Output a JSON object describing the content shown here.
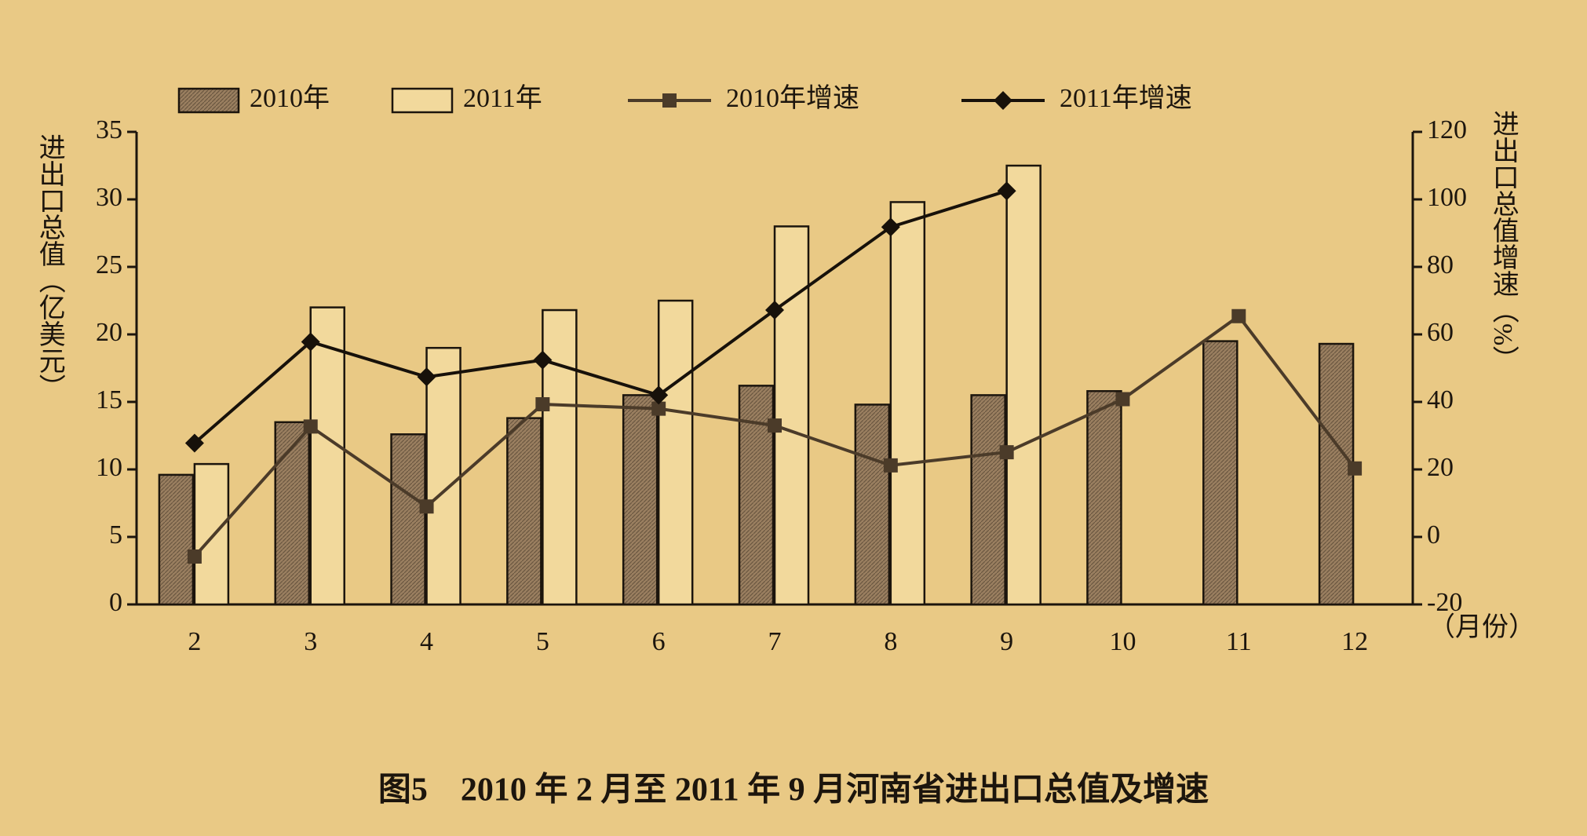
{
  "chart_data": {
    "type": "combo",
    "title": "图5　2010 年 2 月至 2011 年 9 月河南省进出口总值及增速",
    "y_label": "进出口总值（亿美元）",
    "y2_label": "进出口总值增速（%）",
    "x_label": "（月份）",
    "categories": [
      "2",
      "3",
      "4",
      "5",
      "6",
      "7",
      "8",
      "9",
      "10",
      "11",
      "12"
    ],
    "ylim": [
      0,
      35
    ],
    "yticks": [
      0,
      5,
      10,
      15,
      20,
      25,
      30,
      35
    ],
    "y2lim": [
      -20,
      120
    ],
    "y2ticks": [
      -20,
      0,
      20,
      40,
      60,
      80,
      100,
      120
    ],
    "series": [
      {
        "name": "2010年",
        "type": "bar",
        "color": "#8d7458",
        "values": [
          9.6,
          13.5,
          12.6,
          13.8,
          15.5,
          16.2,
          14.8,
          15.5,
          15.8,
          19.5,
          19.3
        ]
      },
      {
        "name": "2011年",
        "type": "bar",
        "color": "#f2d99c",
        "values": [
          10.4,
          22.0,
          19.0,
          21.8,
          22.5,
          28.0,
          29.8,
          32.5,
          null,
          null,
          null
        ]
      },
      {
        "name": "2010年增速",
        "type": "line",
        "axis": "y2",
        "marker": "square",
        "color": "#4b3b29",
        "values": [
          -5.8,
          32.7,
          9.0,
          39.3,
          38.0,
          33.0,
          21.2,
          25.1,
          40.8,
          65.4,
          20.3
        ]
      },
      {
        "name": "2011年增速",
        "type": "line",
        "axis": "y2",
        "marker": "diamond",
        "color": "#17110a",
        "values": [
          27.8,
          57.8,
          47.4,
          52.4,
          42.0,
          67.2,
          91.8,
          102.5,
          null,
          null,
          null
        ]
      }
    ]
  }
}
